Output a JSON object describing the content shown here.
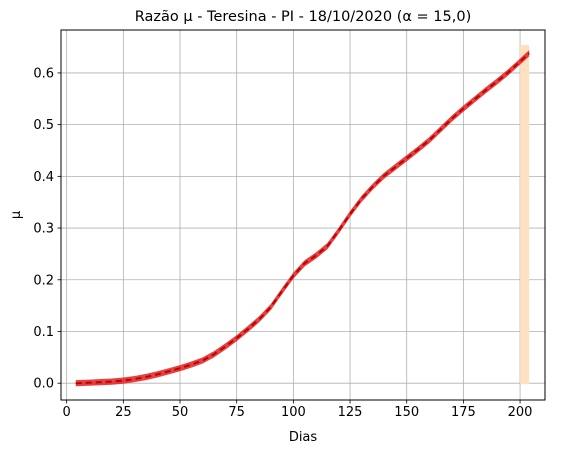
{
  "chart_data": {
    "type": "line",
    "title": "Razão μ - Teresina - PI - 18/10/2020 (α = 15,0)",
    "xlabel": "Dias",
    "ylabel": "μ",
    "xlim": [
      -2.5,
      211
    ],
    "ylim": [
      -0.0325,
      0.683
    ],
    "xticks": [
      0,
      25,
      50,
      75,
      100,
      125,
      150,
      175,
      200
    ],
    "yticks": [
      0.0,
      0.1,
      0.2,
      0.3,
      0.4,
      0.5,
      0.6
    ],
    "xtick_labels": [
      "0",
      "25",
      "50",
      "75",
      "100",
      "125",
      "150",
      "175",
      "200"
    ],
    "ytick_labels": [
      "0.0",
      "0.1",
      "0.2",
      "0.3",
      "0.4",
      "0.5",
      "0.6"
    ],
    "grid": true,
    "band": {
      "x_start": 200,
      "x_end": 204,
      "color": "#ffe0c0"
    },
    "series": [
      {
        "style": "band-dashed",
        "color": "#e02020",
        "x": [
          4,
          10,
          15,
          20,
          25,
          30,
          35,
          40,
          45,
          50,
          55,
          60,
          65,
          70,
          75,
          80,
          85,
          90,
          95,
          100,
          105,
          110,
          115,
          120,
          125,
          130,
          135,
          140,
          145,
          150,
          155,
          160,
          165,
          170,
          175,
          180,
          185,
          190,
          195,
          200,
          204
        ],
        "values": [
          0.0,
          0.001,
          0.002,
          0.003,
          0.005,
          0.008,
          0.012,
          0.017,
          0.023,
          0.029,
          0.036,
          0.044,
          0.056,
          0.071,
          0.087,
          0.105,
          0.124,
          0.147,
          0.178,
          0.208,
          0.232,
          0.247,
          0.265,
          0.295,
          0.327,
          0.356,
          0.38,
          0.401,
          0.418,
          0.435,
          0.452,
          0.47,
          0.491,
          0.512,
          0.531,
          0.549,
          0.567,
          0.584,
          0.602,
          0.622,
          0.638
        ],
        "band_width": 0.012
      }
    ]
  }
}
